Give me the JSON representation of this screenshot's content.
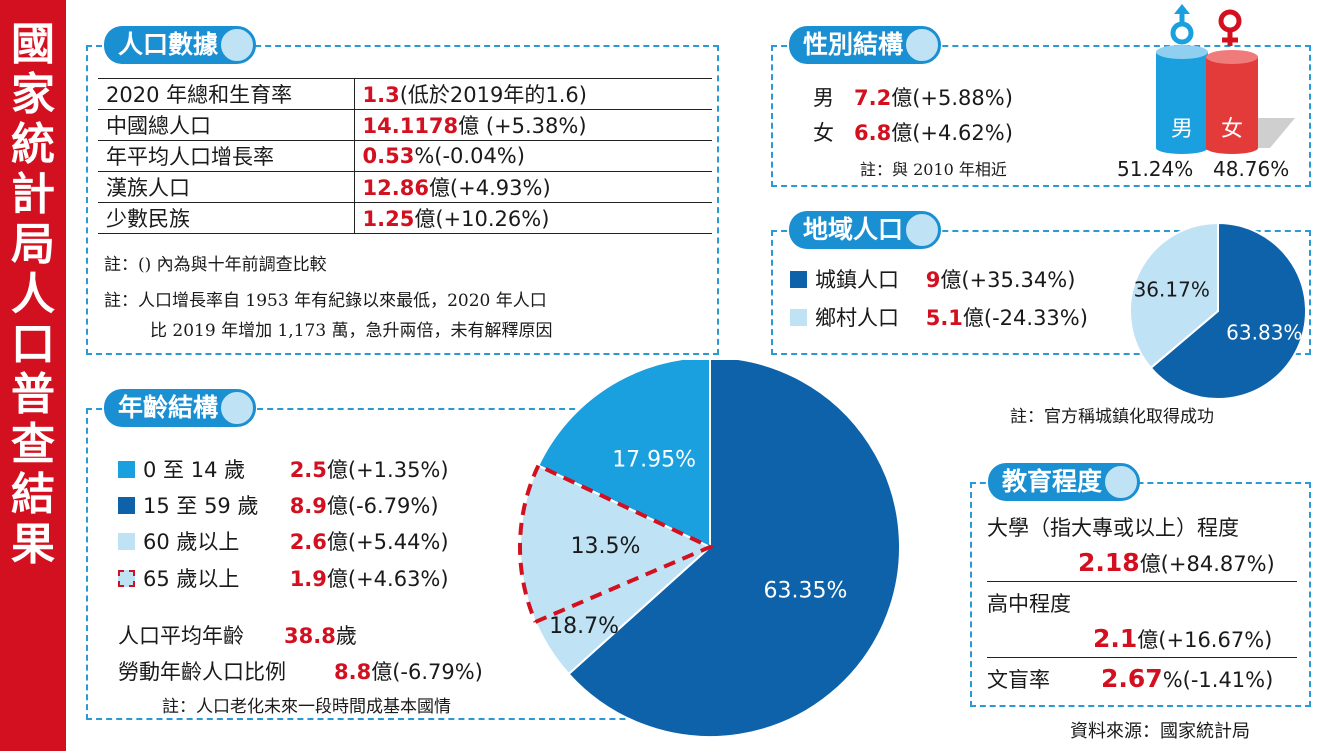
{
  "title": "國家統計局人口普查結果",
  "colors": {
    "red": "#d3101f",
    "blue_light": "#1aa0de",
    "blue_dark": "#0e62a9",
    "blue_pale": "#bfe2f5"
  },
  "population": {
    "tag": "人口數據",
    "rows": [
      {
        "label": "2020 年總和生育率",
        "value": "1.3",
        "suffix": "(低於2019年的1.6)"
      },
      {
        "label": "中國總人口",
        "value": "14.1178",
        "suffix": "億 (+5.38%)"
      },
      {
        "label": "年平均人口增長率",
        "value": "0.53",
        "suffix": "%(-0.04%)"
      },
      {
        "label": "漢族人口",
        "value": "12.86",
        "suffix": "億(+4.93%)"
      },
      {
        "label": "少數民族",
        "value": "1.25",
        "suffix": "億(+10.26%)"
      }
    ],
    "note1": "註：() 內為與十年前調查比較",
    "note2_l1": "註：人口增長率自 1953 年有紀錄以來最低，2020 年人口",
    "note2_l2": "比 2019 年增加 1,173 萬，急升兩倍，未有解釋原因"
  },
  "gender": {
    "tag": "性別結構",
    "male_label": "男",
    "male_value": "7.2",
    "male_suffix": "億(+5.88%)",
    "female_label": "女",
    "female_value": "6.8",
    "female_suffix": "億(+4.62%)",
    "note": "註：與 2010 年相近",
    "male_pct": "51.24%",
    "female_pct": "48.76%",
    "bar_male": "男",
    "bar_female": "女"
  },
  "region": {
    "tag": "地域人口",
    "urban_label": "城鎮人口",
    "urban_value": "9",
    "urban_suffix": "億(+35.34%)",
    "rural_label": "鄉村人口",
    "rural_value": "5.1",
    "rural_suffix": "億(-24.33%)",
    "note": "註：官方稱城鎮化取得成功"
  },
  "age": {
    "tag": "年齡結構",
    "items": [
      {
        "label": "0 至 14 歲",
        "value": "2.5",
        "suffix": "億(+1.35%)"
      },
      {
        "label": "15 至 59 歲",
        "value": "8.9",
        "suffix": "億(-6.79%)"
      },
      {
        "label": "60 歲以上",
        "value": "2.6",
        "suffix": "億(+5.44%)"
      },
      {
        "label": "65 歲以上",
        "value": "1.9",
        "suffix": "億(+4.63%)"
      }
    ],
    "avg_label": "人口平均年齡",
    "avg_value": "38.8",
    "avg_suffix": "歲",
    "work_label": "勞動年齡人口比例",
    "work_value": "8.8",
    "work_suffix": "億(-6.79%)",
    "note": "註：人口老化未來一段時間成基本國情"
  },
  "education": {
    "tag": "教育程度",
    "uni_label": "大學（指大專或以上）程度",
    "uni_value": "2.18",
    "uni_suffix": "億(+84.87%)",
    "high_label": "高中程度",
    "high_value": "2.1",
    "high_suffix": "億(+16.67%)",
    "illit_label": "文盲率",
    "illit_value": "2.67",
    "illit_suffix": "%(-1.41%)"
  },
  "source": "資料來源：國家統計局",
  "chart_data": [
    {
      "type": "pie",
      "categories": [
        "城鎮人口",
        "鄉村人口"
      ],
      "values": [
        63.83,
        36.17
      ],
      "labels": [
        "63.83%",
        "36.17%"
      ]
    },
    {
      "type": "pie",
      "categories": [
        "0 至 14 歲",
        "15 至 59 歲",
        "60 歲以上"
      ],
      "values": [
        17.95,
        63.35,
        18.7
      ],
      "labels": [
        "17.95%",
        "63.35%",
        "18.7%"
      ],
      "sub_slice": {
        "category": "65 歲以上",
        "value": 13.5,
        "label": "13.5%"
      }
    }
  ]
}
